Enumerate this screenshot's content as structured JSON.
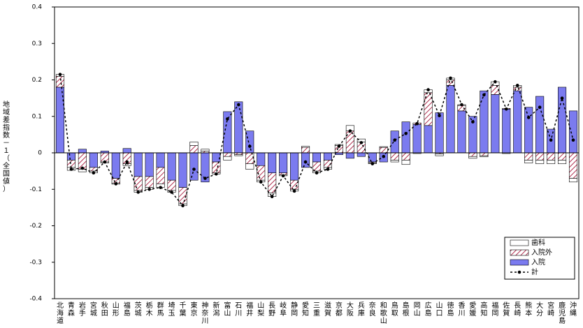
{
  "chart_data": {
    "type": "bar",
    "stacked": true,
    "y_label": "地域差指数－１（全国値）",
    "categories": [
      "北海道",
      "青森",
      "岩手",
      "宮城",
      "秋田",
      "山形",
      "福島",
      "茨城",
      "栃木",
      "群馬",
      "埼玉",
      "千葉",
      "東京",
      "神奈川",
      "新潟",
      "富山",
      "石川",
      "福井",
      "山梨",
      "長野",
      "岐阜",
      "静岡",
      "愛知",
      "三重",
      "滋賀",
      "京都",
      "大阪",
      "兵庫",
      "奈良",
      "和歌山",
      "鳥取",
      "島根",
      "岡山",
      "広島",
      "山口",
      "徳島",
      "香川",
      "愛媛",
      "高知",
      "福岡",
      "佐賀",
      "長崎",
      "熊本",
      "大分",
      "宮崎",
      "鹿児島",
      "沖縄"
    ],
    "series": [
      {
        "name": "入院",
        "color": "#7b7bef",
        "values": [
          0.18,
          -0.02,
          0.01,
          -0.04,
          0.005,
          -0.07,
          0.012,
          -0.065,
          -0.065,
          -0.04,
          -0.075,
          -0.095,
          -0.075,
          -0.08,
          -0.025,
          0.113,
          0.14,
          0.06,
          -0.035,
          -0.055,
          -0.055,
          -0.075,
          -0.04,
          -0.025,
          -0.02,
          -0.005,
          -0.015,
          -0.01,
          -0.025,
          -0.025,
          0.06,
          0.085,
          0.078,
          0.075,
          0.11,
          0.185,
          0.115,
          0.1,
          0.17,
          0.16,
          0.12,
          0.17,
          0.125,
          0.155,
          0.065,
          0.18,
          0.115
        ]
      },
      {
        "name": "入院外",
        "color": "#b03050",
        "hatch": true,
        "values": [
          0.03,
          -0.02,
          -0.045,
          -0.01,
          -0.025,
          -0.013,
          -0.03,
          -0.038,
          -0.03,
          -0.045,
          -0.028,
          -0.045,
          0.02,
          0.005,
          -0.03,
          -0.01,
          -0.005,
          -0.03,
          -0.04,
          -0.055,
          -0.005,
          -0.025,
          0.015,
          -0.025,
          -0.02,
          0.02,
          0.06,
          0.03,
          -0.003,
          0.015,
          -0.02,
          -0.02,
          0.004,
          0.09,
          -0.003,
          0.015,
          0.015,
          -0.01,
          -0.008,
          0.025,
          0.002,
          0.01,
          -0.02,
          -0.02,
          -0.02,
          -0.02,
          -0.07
        ]
      },
      {
        "name": "歯科",
        "color": "#ffffff",
        "values": [
          0.005,
          -0.008,
          -0.007,
          -0.005,
          -0.003,
          -0.003,
          -0.005,
          -0.005,
          -0.005,
          -0.01,
          -0.005,
          -0.005,
          0.01,
          0.005,
          -0.003,
          -0.01,
          -0.003,
          -0.015,
          -0.005,
          -0.01,
          -0.003,
          -0.005,
          0.003,
          -0.005,
          -0.005,
          0.003,
          0.015,
          0.008,
          -0.002,
          0.002,
          -0.005,
          -0.012,
          -0.002,
          0.008,
          -0.005,
          0.005,
          0.002,
          -0.005,
          -0.003,
          0.01,
          -0.002,
          0.005,
          -0.008,
          -0.01,
          -0.01,
          -0.01,
          -0.01
        ]
      },
      {
        "name": "計",
        "color": "#000000",
        "type": "line",
        "values": [
          0.215,
          -0.045,
          -0.042,
          -0.055,
          -0.025,
          -0.085,
          -0.025,
          -0.108,
          -0.1,
          -0.095,
          -0.108,
          -0.145,
          -0.045,
          -0.07,
          -0.058,
          0.093,
          0.132,
          0.018,
          -0.08,
          -0.12,
          -0.063,
          -0.105,
          -0.025,
          -0.055,
          -0.045,
          0.018,
          0.06,
          0.028,
          -0.03,
          -0.01,
          0.035,
          0.053,
          0.08,
          0.173,
          0.102,
          0.205,
          0.132,
          0.085,
          0.159,
          0.195,
          0.12,
          0.185,
          0.097,
          0.125,
          0.035,
          0.15,
          0.035
        ]
      }
    ],
    "ylim": [
      -0.4,
      0.4
    ],
    "yticks": [
      -0.4,
      -0.3,
      -0.2,
      -0.1,
      0,
      0.1,
      0.2,
      0.3,
      0.4
    ],
    "legend": "lower right"
  }
}
